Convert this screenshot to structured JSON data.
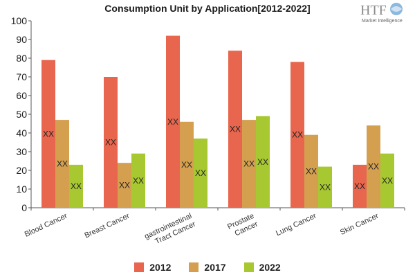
{
  "colors": {
    "2012": "#e8664e",
    "2017": "#d4a050",
    "2022": "#a8c832",
    "axis": "#555555"
  },
  "logo": {
    "text": "HTF",
    "subtext": "Market Intelligence"
  },
  "chart_data": {
    "type": "bar",
    "title": "Consumption Unit by  Application[2012-2022]",
    "categories": [
      "Blood Cancer",
      "Breast Cancer",
      "gastrointestinal Tract Cancer",
      "Prostate Cancer",
      "Lung Cancer",
      "Skin Cancer"
    ],
    "series": [
      {
        "name": "2012",
        "values": [
          79,
          70,
          92,
          84,
          78,
          23
        ]
      },
      {
        "name": "2017",
        "values": [
          47,
          24,
          46,
          47,
          39,
          44
        ]
      },
      {
        "name": "2022",
        "values": [
          23,
          29,
          37,
          49,
          22,
          29
        ]
      }
    ],
    "ylim": [
      0,
      100
    ],
    "yticks": [
      0,
      10,
      20,
      30,
      40,
      50,
      60,
      70,
      80,
      90,
      100
    ],
    "data_label": "XX",
    "legend_position": "bottom",
    "grid": false
  }
}
